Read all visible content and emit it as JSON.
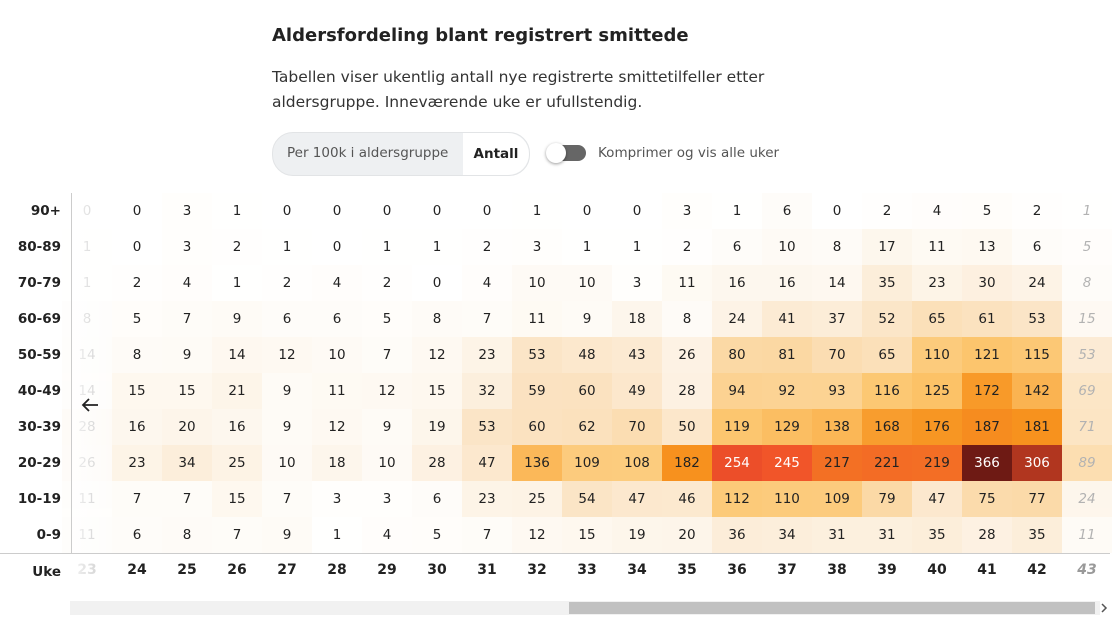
{
  "header": {
    "title": "Aldersfordeling blant registrert smittede",
    "description": "Tabellen viser ukentlig antall nye registrerte smittetilfeller etter aldersgruppe. Inneværende uke er ufullstendig."
  },
  "controls": {
    "options": [
      "Per 100k i aldersgruppe",
      "Antall"
    ],
    "toggle_label": "Komprimer og vis alle uker"
  },
  "table": {
    "row_labels": [
      "90+",
      "80-89",
      "70-79",
      "60-69",
      "50-59",
      "40-49",
      "30-39",
      "20-29",
      "10-19",
      "0-9"
    ],
    "week_label": "Uke",
    "weeks": [
      23,
      24,
      25,
      26,
      27,
      28,
      29,
      30,
      31,
      32,
      33,
      34,
      35,
      36,
      37,
      38,
      39,
      40,
      41,
      42,
      43
    ],
    "rows": [
      [
        0,
        0,
        3,
        1,
        0,
        0,
        0,
        0,
        0,
        1,
        0,
        0,
        3,
        1,
        6,
        0,
        2,
        4,
        5,
        2,
        1
      ],
      [
        1,
        0,
        3,
        2,
        1,
        0,
        1,
        1,
        2,
        3,
        1,
        1,
        2,
        6,
        10,
        8,
        17,
        11,
        13,
        6,
        5
      ],
      [
        1,
        2,
        4,
        1,
        2,
        4,
        2,
        0,
        4,
        10,
        10,
        3,
        11,
        16,
        16,
        14,
        35,
        23,
        30,
        24,
        8
      ],
      [
        8,
        5,
        7,
        9,
        6,
        6,
        5,
        8,
        7,
        11,
        9,
        18,
        8,
        24,
        41,
        37,
        52,
        65,
        61,
        53,
        15
      ],
      [
        14,
        8,
        9,
        14,
        12,
        10,
        7,
        12,
        23,
        53,
        48,
        43,
        26,
        80,
        81,
        70,
        65,
        110,
        121,
        115,
        53
      ],
      [
        14,
        15,
        15,
        21,
        9,
        11,
        12,
        15,
        32,
        59,
        60,
        49,
        28,
        94,
        92,
        93,
        116,
        125,
        172,
        142,
        69
      ],
      [
        28,
        16,
        20,
        16,
        9,
        12,
        9,
        19,
        53,
        60,
        62,
        70,
        50,
        119,
        129,
        138,
        168,
        176,
        187,
        181,
        71
      ],
      [
        26,
        23,
        34,
        25,
        10,
        18,
        10,
        28,
        47,
        136,
        109,
        108,
        182,
        254,
        245,
        217,
        221,
        219,
        366,
        306,
        89
      ],
      [
        11,
        7,
        7,
        15,
        7,
        3,
        3,
        6,
        23,
        25,
        54,
        47,
        46,
        112,
        110,
        109,
        79,
        47,
        75,
        77,
        24
      ],
      [
        11,
        6,
        8,
        7,
        9,
        1,
        4,
        5,
        7,
        12,
        15,
        19,
        20,
        36,
        34,
        31,
        31,
        35,
        28,
        35,
        11
      ]
    ]
  }
}
